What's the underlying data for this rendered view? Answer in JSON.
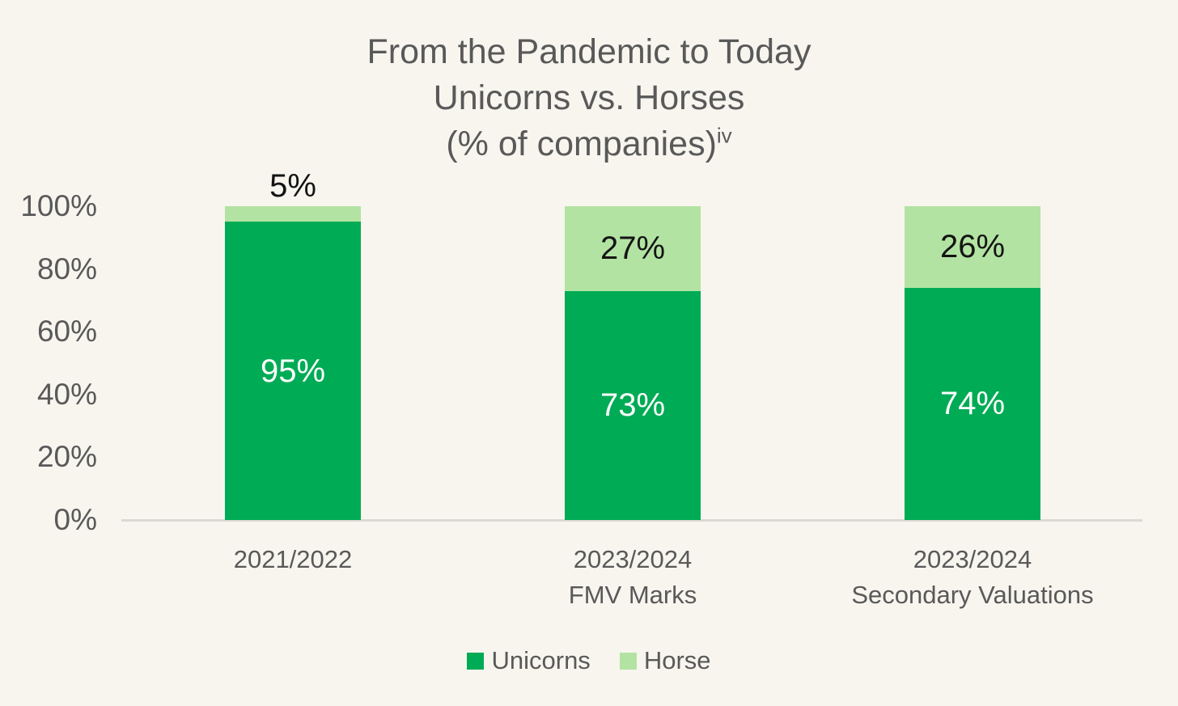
{
  "title": {
    "line1": "From the Pandemic to Today",
    "line2": "Unicorns vs. Horses",
    "line3": "(% of companies)",
    "superscript": "iv"
  },
  "chart_data": {
    "type": "bar",
    "stacked": true,
    "title": "From the Pandemic to Today Unicorns vs. Horses (% of companies)",
    "categories": [
      [
        "2021/2022"
      ],
      [
        "2023/2024",
        "FMV Marks"
      ],
      [
        "2023/2024",
        "Secondary Valuations"
      ]
    ],
    "series": [
      {
        "name": "Unicorns",
        "color": "#00ab55",
        "label_color": "#ffffff",
        "values": [
          95,
          73,
          74
        ]
      },
      {
        "name": "Horse",
        "color": "#b2e3a2",
        "label_color": "#141414",
        "values": [
          5,
          27,
          26
        ]
      }
    ],
    "data_label_format": "percent",
    "y_ticks": [
      "0%",
      "20%",
      "40%",
      "60%",
      "80%",
      "100%"
    ],
    "ylim": [
      0,
      100
    ],
    "grid": false,
    "legend_position": "bottom"
  },
  "colors": {
    "background": "#f7f5ee",
    "text": "#595959",
    "data_label_dark": "#141414",
    "data_label_light": "#ffffff",
    "axis_line": "#dbd9d3",
    "unicorns_green": "#00ab55",
    "horse_green": "#b2e3a2"
  }
}
